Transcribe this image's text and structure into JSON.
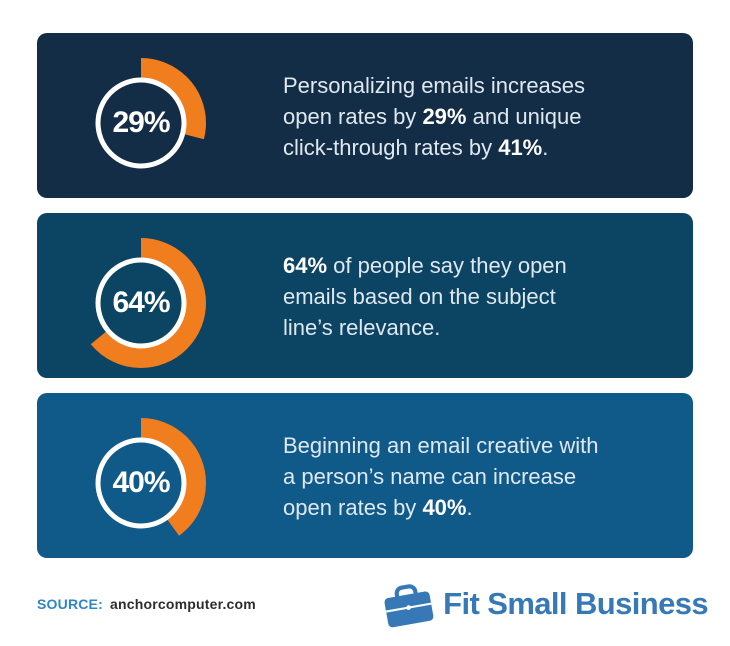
{
  "colors": {
    "page_bg": "#ffffff",
    "orange": "#f07d1e",
    "ring_white": "#ffffff",
    "body_text": "#dfe8ef",
    "bold_text": "#ffffff",
    "source_blue": "#2e86c8",
    "source_dark": "#2d2d2d",
    "logo_blue": "#3779b7"
  },
  "cards": [
    {
      "background": "#132d47",
      "percent": 29,
      "percent_label": "29%",
      "lines": [
        [
          {
            "text": "Personalizing emails increases",
            "bold": false
          }
        ],
        [
          {
            "text": "open rates by ",
            "bold": false
          },
          {
            "text": "29%",
            "bold": true
          },
          {
            "text": " and unique",
            "bold": false
          }
        ],
        [
          {
            "text": "click-through rates by ",
            "bold": false
          },
          {
            "text": "41%",
            "bold": true
          },
          {
            "text": ".",
            "bold": false
          }
        ]
      ]
    },
    {
      "background": "#0c4464",
      "percent": 64,
      "percent_label": "64%",
      "lines": [
        [
          {
            "text": "64%",
            "bold": true
          },
          {
            "text": " of people say they open",
            "bold": false
          }
        ],
        [
          {
            "text": "emails based on the subject",
            "bold": false
          }
        ],
        [
          {
            "text": "line’s relevance.",
            "bold": false
          }
        ]
      ]
    },
    {
      "background": "#105a8a",
      "percent": 40,
      "percent_label": "40%",
      "lines": [
        [
          {
            "text": "Beginning an email creative with",
            "bold": false
          }
        ],
        [
          {
            "text": "a person’s name can increase",
            "bold": false
          }
        ],
        [
          {
            "text": "open rates by ",
            "bold": false
          },
          {
            "text": "40%",
            "bold": true
          },
          {
            "text": ".",
            "bold": false
          }
        ]
      ]
    }
  ],
  "footer": {
    "source_label": "SOURCE:",
    "source_value": "anchorcomputer.com",
    "logo_text": "Fit Small Business",
    "briefcase_icon": "briefcase-icon"
  },
  "chart_data": [
    {
      "type": "pie",
      "subtype": "donut",
      "title": "Personalizing emails increases open rates by 29% and unique click-through rates by 41%.",
      "labels": [
        "29%",
        "remainder"
      ],
      "values": [
        29,
        71
      ],
      "center_label": "29%",
      "start_angle_deg": -90,
      "direction": "clockwise",
      "arc_color": "#f07d1e",
      "ring_color": "#ffffff"
    },
    {
      "type": "pie",
      "subtype": "donut",
      "title": "64% of people say they open emails based on the subject line’s relevance.",
      "labels": [
        "64%",
        "remainder"
      ],
      "values": [
        64,
        36
      ],
      "center_label": "64%",
      "start_angle_deg": -90,
      "direction": "clockwise",
      "arc_color": "#f07d1e",
      "ring_color": "#ffffff"
    },
    {
      "type": "pie",
      "subtype": "donut",
      "title": "Beginning an email creative with a person’s name can increase open rates by 40%.",
      "labels": [
        "40%",
        "remainder"
      ],
      "values": [
        40,
        60
      ],
      "center_label": "40%",
      "start_angle_deg": -90,
      "direction": "clockwise",
      "arc_color": "#f07d1e",
      "ring_color": "#ffffff"
    }
  ]
}
